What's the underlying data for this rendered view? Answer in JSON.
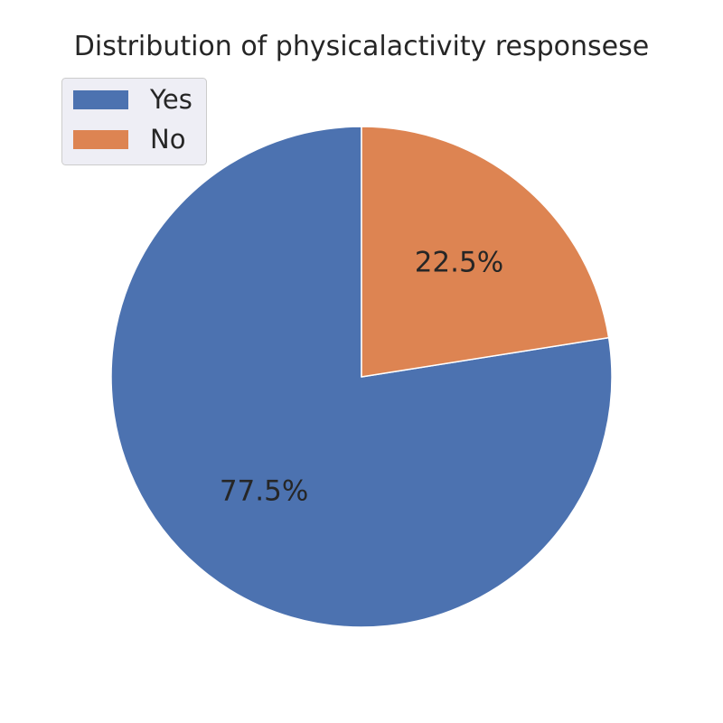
{
  "chart_data": {
    "type": "pie",
    "title": "Distribution of physicalactivity responsese",
    "categories": [
      "Yes",
      "No"
    ],
    "values": [
      77.5,
      22.5
    ],
    "value_labels": [
      "77.5%",
      "22.5%"
    ],
    "colors": [
      "#4c72b0",
      "#dd8452"
    ],
    "start_angle": 90,
    "direction": "counterclockwise",
    "legend": {
      "position": "top-left",
      "entries": [
        "Yes",
        "No"
      ]
    }
  }
}
